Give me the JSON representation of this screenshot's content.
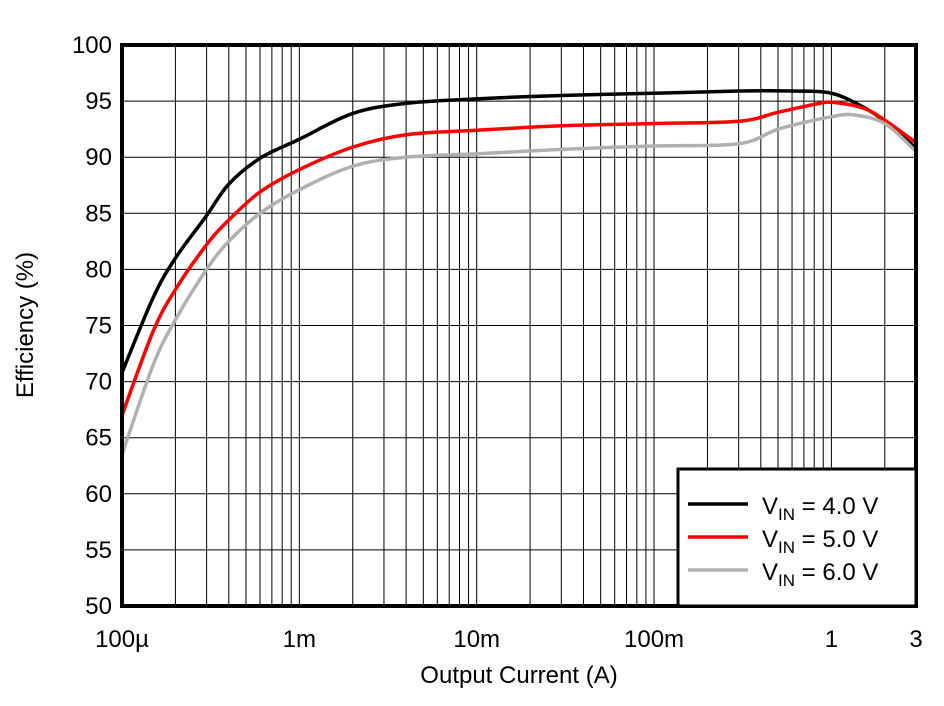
{
  "chart_data": {
    "type": "line",
    "title": "",
    "xlabel": "Output Current (A)",
    "ylabel": "Efficiency (%)",
    "x_scale": "log",
    "xlim": [
      0.0001,
      3
    ],
    "ylim": [
      50,
      100
    ],
    "grid": true,
    "legend_position": "bottom-right",
    "x_ticks": [
      {
        "value": 0.0001,
        "label": "100µ"
      },
      {
        "value": 0.001,
        "label": "1m"
      },
      {
        "value": 0.01,
        "label": "10m"
      },
      {
        "value": 0.1,
        "label": "100m"
      },
      {
        "value": 1,
        "label": "1"
      },
      {
        "value": 3,
        "label": "3"
      }
    ],
    "y_ticks": [
      50,
      55,
      60,
      65,
      70,
      75,
      80,
      85,
      90,
      95,
      100
    ],
    "series": [
      {
        "name": "VIN = 4.0 V",
        "color": "#000000",
        "x": [
          0.0001,
          0.00015,
          0.0002,
          0.0003,
          0.0004,
          0.0006,
          0.001,
          0.002,
          0.004,
          0.01,
          0.03,
          0.1,
          0.3,
          0.6,
          1,
          1.5,
          2,
          3
        ],
        "y": [
          70.8,
          77.5,
          81.0,
          84.8,
          87.6,
          89.9,
          91.6,
          93.9,
          94.8,
          95.2,
          95.5,
          95.7,
          95.9,
          95.9,
          95.7,
          94.5,
          93.2,
          90.8
        ]
      },
      {
        "name": "VIN = 5.0 V",
        "color": "#ff0000",
        "x": [
          0.0001,
          0.00015,
          0.0002,
          0.0003,
          0.0004,
          0.0006,
          0.001,
          0.002,
          0.004,
          0.01,
          0.03,
          0.1,
          0.3,
          0.5,
          0.8,
          1,
          1.5,
          2,
          3
        ],
        "y": [
          67.0,
          74.5,
          78.2,
          82.2,
          84.4,
          86.9,
          88.9,
          90.9,
          92.0,
          92.4,
          92.8,
          93.0,
          93.2,
          94.0,
          94.7,
          94.9,
          94.4,
          93.3,
          91.3
        ]
      },
      {
        "name": "VIN = 6.0 V",
        "color": "#b0b0b0",
        "x": [
          0.0001,
          0.00015,
          0.0002,
          0.0003,
          0.0004,
          0.0006,
          0.001,
          0.002,
          0.004,
          0.01,
          0.03,
          0.1,
          0.3,
          0.5,
          0.8,
          1,
          1.3,
          2,
          3
        ],
        "y": [
          63.5,
          71.5,
          75.5,
          80.0,
          82.5,
          85.0,
          87.1,
          89.2,
          90.0,
          90.3,
          90.7,
          91.0,
          91.2,
          92.5,
          93.3,
          93.6,
          93.8,
          93.0,
          90.5
        ]
      }
    ]
  }
}
